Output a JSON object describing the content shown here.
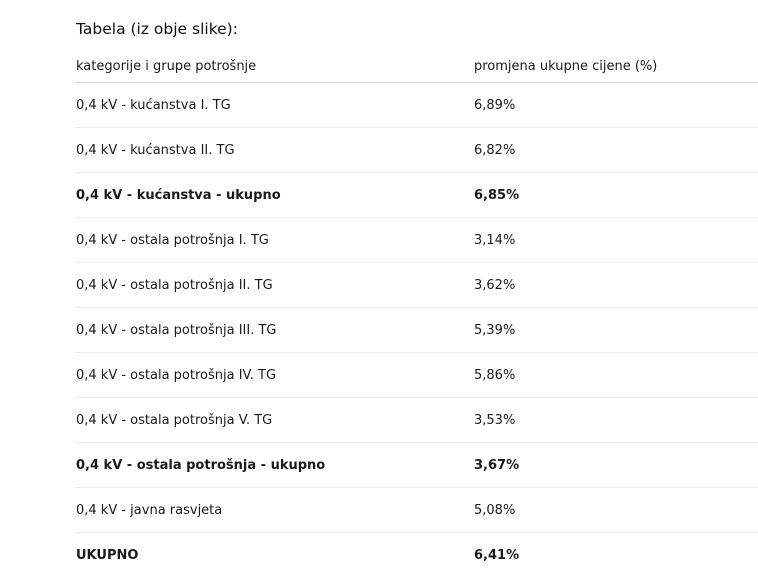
{
  "heading": "Tabela (iz obje slike):",
  "table": {
    "headers": {
      "category": "kategorije i grupe potrošnje",
      "change": "promjena ukupne cijene (%)"
    },
    "rows": [
      {
        "category": "0,4 kV - kućanstva I. TG",
        "change": "6,89%",
        "bold": false
      },
      {
        "category": "0,4 kV - kućanstva II. TG",
        "change": "6,82%",
        "bold": false
      },
      {
        "category": "0,4 kV - kućanstva - ukupno",
        "change": "6,85%",
        "bold": true
      },
      {
        "category": "0,4 kV - ostala potrošnja I. TG",
        "change": "3,14%",
        "bold": false
      },
      {
        "category": "0,4 kV - ostala potrošnja II. TG",
        "change": "3,62%",
        "bold": false
      },
      {
        "category": "0,4 kV - ostala potrošnja III. TG",
        "change": "5,39%",
        "bold": false
      },
      {
        "category": "0,4 kV - ostala potrošnja IV. TG",
        "change": "5,86%",
        "bold": false
      },
      {
        "category": "0,4 kV - ostala potrošnja V. TG",
        "change": "3,53%",
        "bold": false
      },
      {
        "category": "0,4 kV - ostala potrošnja - ukupno",
        "change": "3,67%",
        "bold": true
      },
      {
        "category": "0,4 kV - javna rasvjeta",
        "change": "5,08%",
        "bold": false
      },
      {
        "category": "UKUPNO",
        "change": "6,41%",
        "bold": true
      }
    ]
  }
}
